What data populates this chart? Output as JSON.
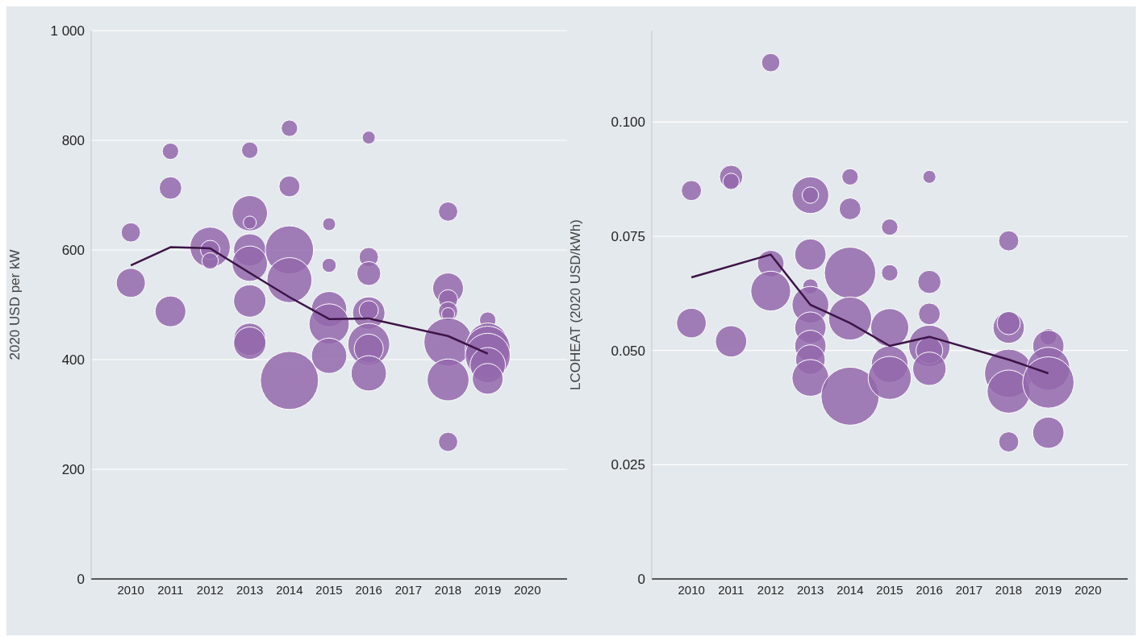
{
  "chart_data": [
    {
      "type": "bubble",
      "ylabel": "2020 USD per kW",
      "xlim": [
        2009,
        2021
      ],
      "xticks": [
        2010,
        2011,
        2012,
        2013,
        2014,
        2015,
        2016,
        2017,
        2018,
        2019,
        2020
      ],
      "ylim": [
        0,
        1000
      ],
      "yticks": [
        0,
        200,
        400,
        600,
        800,
        {
          "value": 1000,
          "label": "1 000"
        }
      ],
      "grid": "y",
      "series": [
        {
          "color": "#9468ad",
          "x": [
            2010,
            2010,
            2011,
            2011,
            2011,
            2012,
            2012,
            2012,
            2013,
            2013,
            2013,
            2013,
            2013,
            2013,
            2013,
            2013,
            2014,
            2014,
            2014,
            2014,
            2014,
            2015,
            2015,
            2015,
            2015,
            2015,
            2016,
            2016,
            2016,
            2016,
            2016,
            2016,
            2016,
            2016,
            2018,
            2018,
            2018,
            2018,
            2018,
            2018,
            2018,
            2018,
            2019,
            2019,
            2019,
            2019,
            2019,
            2019
          ],
          "values": [
            632,
            540,
            780,
            713,
            488,
            605,
            600,
            580,
            782,
            667,
            650,
            600,
            575,
            507,
            437,
            430,
            822,
            716,
            600,
            545,
            362,
            647,
            572,
            492,
            465,
            407,
            805,
            587,
            557,
            485,
            490,
            428,
            420,
            375,
            670,
            530,
            510,
            488,
            483,
            432,
            363,
            250,
            472,
            430,
            420,
            407,
            390,
            365
          ],
          "sizes": [
            0.11,
            0.25,
            0.08,
            0.15,
            0.28,
            0.48,
            0.11,
            0.08,
            0.08,
            0.37,
            0.05,
            0.31,
            0.37,
            0.31,
            0.31,
            0.31,
            0.08,
            0.13,
            0.69,
            0.6,
            1,
            0.05,
            0.06,
            0.37,
            0.48,
            0.37,
            0.05,
            0.11,
            0.17,
            0.31,
            0.11,
            0.52,
            0.25,
            0.37,
            0.11,
            0.28,
            0.11,
            0.11,
            0.05,
            0.69,
            0.52,
            0.11,
            0.08,
            0.48,
            0.6,
            0.6,
            0.37,
            0.28
          ]
        },
        {
          "type": "line",
          "color": "#3d1447",
          "marker": "none",
          "x": [
            2010,
            2011,
            2012,
            2013,
            2014,
            2015,
            2016,
            2018,
            2019
          ],
          "values": [
            572,
            605,
            603,
            558,
            514,
            474,
            475,
            443,
            411
          ]
        }
      ]
    },
    {
      "type": "bubble",
      "ylabel": "LCOHEAT (2020 USD/kWh)",
      "xlim": [
        2009,
        2021
      ],
      "xticks": [
        2010,
        2011,
        2012,
        2013,
        2014,
        2015,
        2016,
        2017,
        2018,
        2019,
        2020
      ],
      "ylim": [
        0,
        0.12
      ],
      "yticks": [
        0,
        0.025,
        {
          "value": 0.05,
          "label": "0.050"
        },
        0.075,
        {
          "value": 0.1,
          "label": "0.100"
        }
      ],
      "grid": "y",
      "series": [
        {
          "color": "#9468ad",
          "x": [
            2010,
            2010,
            2011,
            2011,
            2011,
            2012,
            2012,
            2012,
            2013,
            2013,
            2013,
            2013,
            2013,
            2013,
            2013,
            2013,
            2013,
            2014,
            2014,
            2014,
            2014,
            2014,
            2015,
            2015,
            2015,
            2015,
            2015,
            2016,
            2016,
            2016,
            2016,
            2016,
            2016,
            2018,
            2018,
            2018,
            2018,
            2018,
            2018,
            2019,
            2019,
            2019,
            2019,
            2019
          ],
          "values": [
            0.085,
            0.056,
            0.088,
            0.087,
            0.052,
            0.113,
            0.069,
            0.063,
            0.084,
            0.084,
            0.071,
            0.064,
            0.06,
            0.055,
            0.051,
            0.048,
            0.044,
            0.088,
            0.081,
            0.067,
            0.057,
            0.04,
            0.077,
            0.067,
            0.055,
            0.047,
            0.044,
            0.088,
            0.065,
            0.058,
            0.051,
            0.05,
            0.046,
            0.074,
            0.055,
            0.056,
            0.045,
            0.041,
            0.03,
            0.053,
            0.051,
            0.046,
            0.043,
            0.032
          ],
          "sizes": [
            0.12,
            0.26,
            0.16,
            0.08,
            0.29,
            0.1,
            0.21,
            0.47,
            0.4,
            0.08,
            0.29,
            0.07,
            0.4,
            0.29,
            0.29,
            0.26,
            0.4,
            0.08,
            0.14,
            0.78,
            0.55,
            1,
            0.08,
            0.08,
            0.43,
            0.4,
            0.55,
            0.05,
            0.16,
            0.14,
            0.51,
            0.21,
            0.33,
            0.12,
            0.29,
            0.16,
            0.69,
            0.55,
            0.12,
            0.08,
            0.29,
            0.55,
            0.78,
            0.29
          ]
        },
        {
          "type": "line",
          "color": "#3d1447",
          "marker": "none",
          "x": [
            2010,
            2012,
            2013,
            2014,
            2015,
            2016,
            2018,
            2019
          ],
          "values": [
            0.066,
            0.071,
            0.06,
            0.056,
            0.051,
            0.053,
            0.048,
            0.045
          ]
        }
      ]
    }
  ]
}
